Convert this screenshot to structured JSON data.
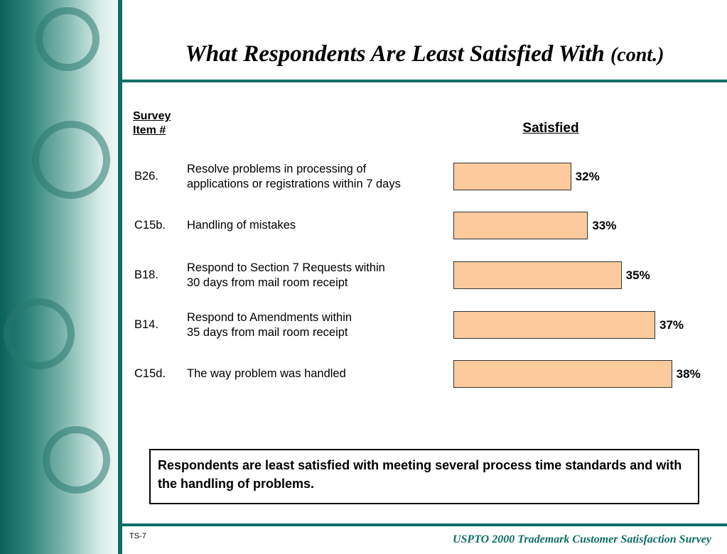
{
  "title": "What Respondents Are Least Satisfied With",
  "title_suffix": "(cont.)",
  "chart_data": {
    "type": "bar",
    "orientation": "horizontal",
    "item_header": "Survey Item #",
    "value_header": "Satisfied",
    "categories": [
      "B26.",
      "C15b.",
      "B18.",
      "B14.",
      "C15d."
    ],
    "descriptions": [
      "Resolve problems in processing of\napplications or registrations within 7 days",
      "Handling of mistakes",
      "Respond to Section 7 Requests within\n30 days from mail room receipt",
      "Respond to Amendments within\n35 days from mail room receipt",
      "The way problem was handled"
    ],
    "values": [
      32,
      33,
      35,
      37,
      38
    ],
    "value_labels": [
      "32%",
      "33%",
      "35%",
      "37%",
      "38%"
    ],
    "color": "#fdca9d",
    "xlim": [
      25,
      40
    ]
  },
  "note": "Respondents are least satisfied with meeting several process time standards and with the handling of problems.",
  "footer": {
    "page": "TS-7",
    "source": "USPTO 2000 Trademark Customer Satisfaction Survey"
  }
}
